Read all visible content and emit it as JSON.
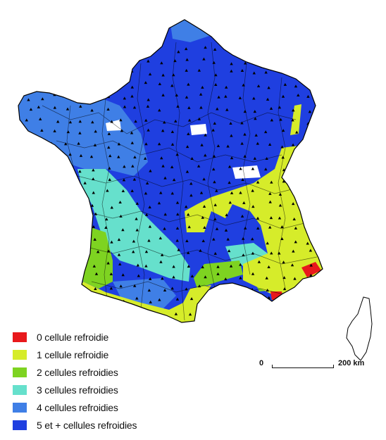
{
  "legend": {
    "items": [
      {
        "label": "0 cellule refroidie",
        "color": "#e8191c"
      },
      {
        "label": "1 cellule refroidie",
        "color": "#d6ec2a"
      },
      {
        "label": "2 cellules refroidies",
        "color": "#7ed321"
      },
      {
        "label": "3 cellules refroidies",
        "color": "#66e0cc"
      },
      {
        "label": "4 cellules refroidies",
        "color": "#3f7fe6"
      },
      {
        "label": "5 et + cellules refroidies",
        "color": "#1f3fe0"
      }
    ]
  },
  "scale": {
    "start_label": "0",
    "end_label": "200 km"
  },
  "colors": {
    "zone0": "#e8191c",
    "zone1": "#d6ec2a",
    "zone2": "#7ed321",
    "zone3": "#66e0cc",
    "zone4": "#3f7fe6",
    "zone5": "#1f3fe0",
    "border": "#000000"
  }
}
